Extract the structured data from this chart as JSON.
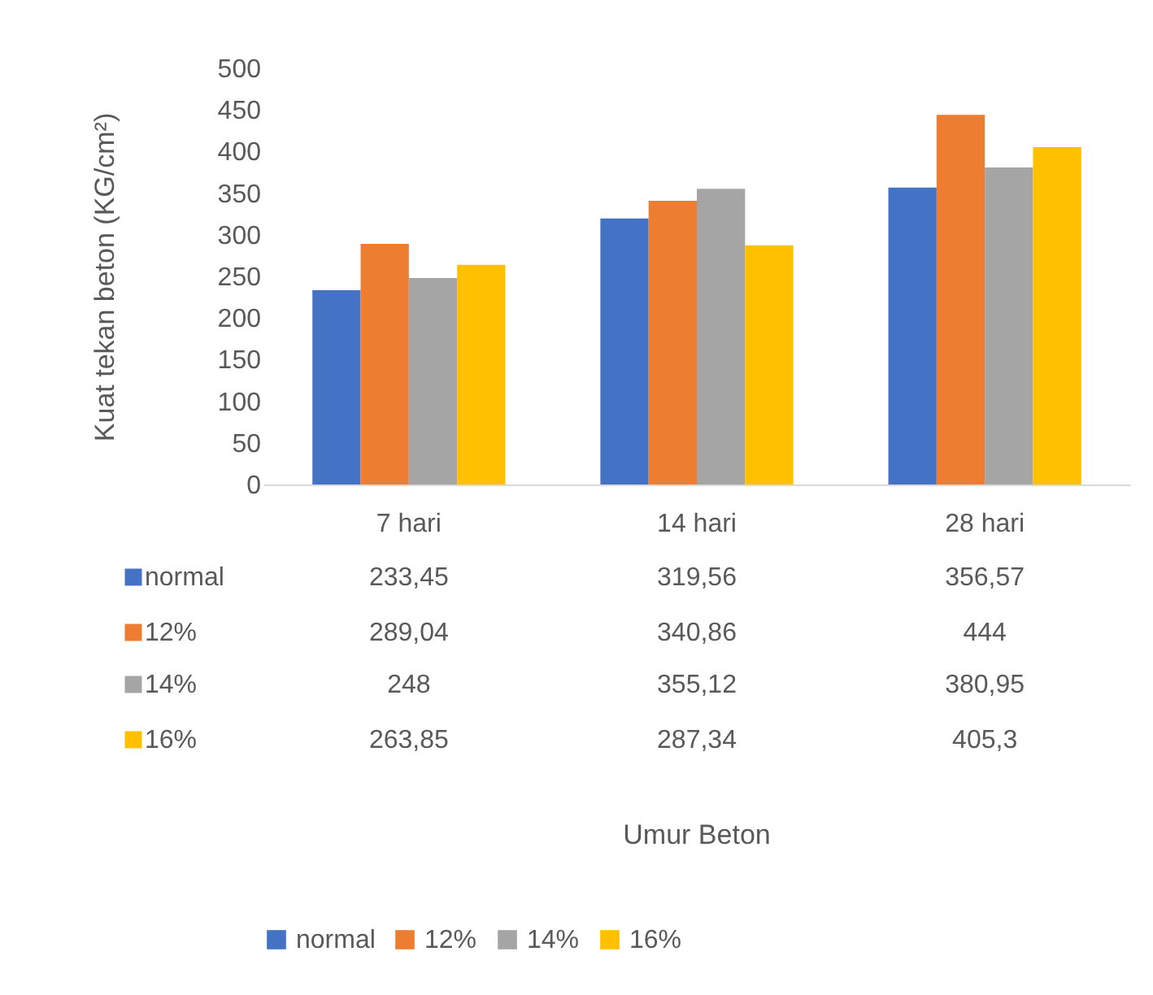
{
  "chart_data": {
    "type": "bar",
    "ylabel": "Kuat tekan beton (KG/cm²)",
    "annotations": [
      "Umur Beton"
    ],
    "categories": [
      "7 hari",
      "14 hari",
      "28 hari"
    ],
    "series": [
      {
        "name": "normal",
        "color": "#4472c4",
        "values": [
          233.45,
          319.56,
          356.57
        ],
        "value_labels": [
          "233,45",
          "319,56",
          "356,57"
        ]
      },
      {
        "name": "12%",
        "color": "#ed7d31",
        "values": [
          289.04,
          340.86,
          444
        ],
        "value_labels": [
          "289,04",
          "340,86",
          "444"
        ]
      },
      {
        "name": "14%",
        "color": "#a5a5a5",
        "values": [
          248,
          355.12,
          380.95
        ],
        "value_labels": [
          "248",
          "355,12",
          "380,95"
        ]
      },
      {
        "name": "16%",
        "color": "#ffc000",
        "values": [
          263.85,
          287.34,
          405.3
        ],
        "value_labels": [
          "263,85",
          "287,34",
          "405,3"
        ]
      }
    ],
    "ylim": [
      0,
      500
    ],
    "yticks": [
      0,
      50,
      100,
      150,
      200,
      250,
      300,
      350,
      400,
      450,
      500
    ],
    "grid": false,
    "legend": "bottom"
  }
}
